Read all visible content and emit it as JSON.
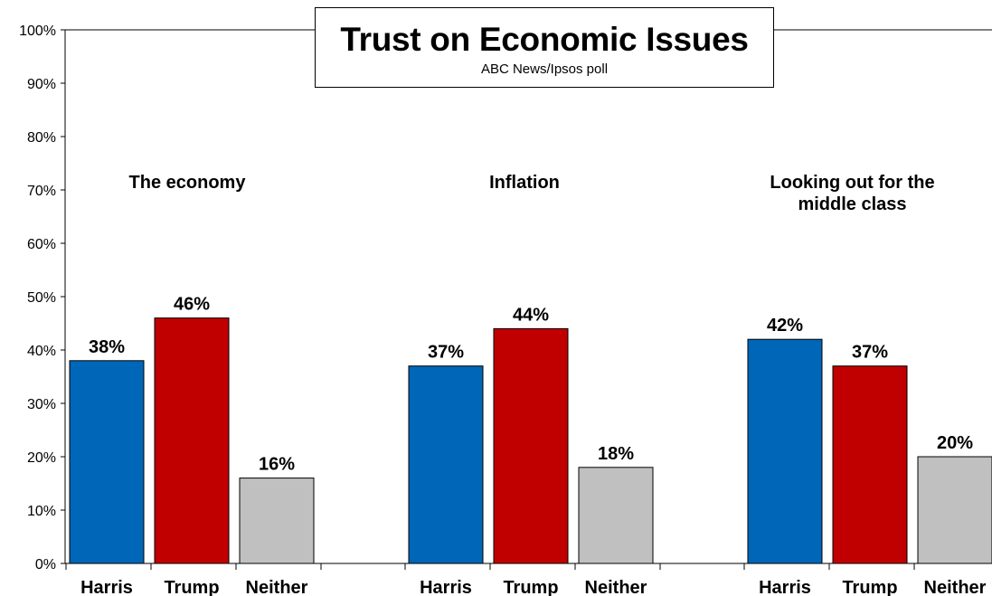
{
  "chart_data": {
    "type": "bar",
    "title": "Trust on Economic Issues",
    "subtitle": "ABC News/Ipsos poll",
    "ylim": [
      0,
      100
    ],
    "yticks": [
      "0%",
      "10%",
      "20%",
      "30%",
      "40%",
      "50%",
      "60%",
      "70%",
      "80%",
      "90%",
      "100%"
    ],
    "grid": false,
    "groups": [
      {
        "label": "The economy",
        "categories": [
          "Harris",
          "Trump",
          "Neither"
        ],
        "values": [
          38,
          46,
          16
        ],
        "value_labels": [
          "38%",
          "46%",
          "16%"
        ]
      },
      {
        "label": "Inflation",
        "categories": [
          "Harris",
          "Trump",
          "Neither"
        ],
        "values": [
          37,
          44,
          18
        ],
        "value_labels": [
          "37%",
          "44%",
          "18%"
        ]
      },
      {
        "label": "Looking out for the\nmiddle class",
        "categories": [
          "Harris",
          "Trump",
          "Neither"
        ],
        "values": [
          42,
          37,
          20
        ],
        "value_labels": [
          "42%",
          "37%",
          "20%"
        ]
      }
    ],
    "colors": {
      "Harris": "#0066b8",
      "Trump": "#c00000",
      "Neither": "#c0c0c0"
    }
  }
}
